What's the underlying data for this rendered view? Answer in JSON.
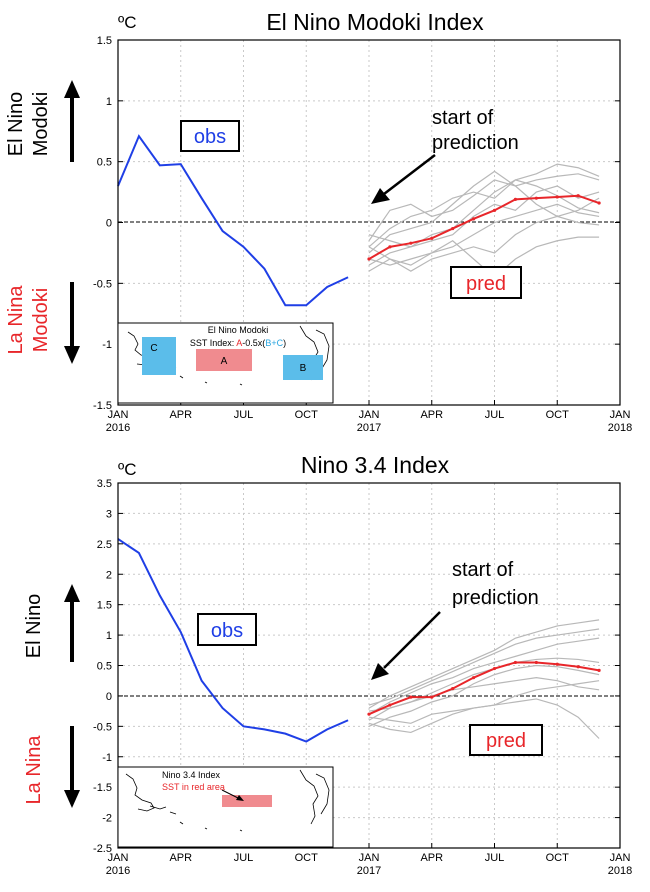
{
  "chart_data": [
    {
      "type": "line",
      "title": "El Nino Modoki Index",
      "unit": "ºC",
      "ylim": [
        -1.5,
        1.5
      ],
      "yticks": [
        -1.5,
        -1,
        -0.5,
        0,
        0.5,
        1,
        1.5
      ],
      "ytick_labels": [
        "-1.5",
        "-1",
        "-0.5",
        "0",
        "0.5",
        "1",
        "1.5"
      ],
      "xlim": [
        0,
        24
      ],
      "xticks": [
        {
          "x": 0,
          "line1": "JAN",
          "line2": "2016"
        },
        {
          "x": 3,
          "line1": "APR",
          "line2": ""
        },
        {
          "x": 6,
          "line1": "JUL",
          "line2": ""
        },
        {
          "x": 9,
          "line1": "OCT",
          "line2": ""
        },
        {
          "x": 12,
          "line1": "JAN",
          "line2": "2017"
        },
        {
          "x": 15,
          "line1": "APR",
          "line2": ""
        },
        {
          "x": 18,
          "line1": "JUL",
          "line2": ""
        },
        {
          "x": 21,
          "line1": "OCT",
          "line2": ""
        },
        {
          "x": 24,
          "line1": "JAN",
          "line2": "2018"
        }
      ],
      "obs": {
        "x": [
          0,
          1,
          2,
          3,
          4,
          5,
          6,
          7,
          8,
          9,
          10,
          11
        ],
        "values": [
          0.3,
          0.71,
          0.47,
          0.48,
          0.2,
          -0.07,
          -0.2,
          -0.38,
          -0.68,
          -0.68,
          -0.53,
          -0.45
        ],
        "color": "#1f3fe6"
      },
      "pred_mean": {
        "x": [
          12,
          13,
          14,
          15,
          16,
          17,
          18,
          19,
          20,
          21,
          22,
          23
        ],
        "values": [
          -0.3,
          -0.2,
          -0.17,
          -0.13,
          -0.05,
          0.03,
          0.1,
          0.19,
          0.2,
          0.21,
          0.22,
          0.16
        ],
        "color": "#e8262a"
      },
      "members": {
        "x": [
          12,
          13,
          14,
          15,
          16,
          17,
          18,
          19,
          20,
          21,
          22,
          23
        ],
        "color": "#b8b8b8",
        "lines": [
          [
            -0.15,
            0.1,
            0.15,
            0.05,
            0.1,
            0.22,
            0.35,
            0.3,
            0.35,
            0.38,
            0.4,
            0.35
          ],
          [
            -0.2,
            -0.05,
            0.05,
            0.1,
            0.2,
            0.25,
            0.2,
            0.35,
            0.4,
            0.48,
            0.45,
            0.38
          ],
          [
            -0.25,
            -0.1,
            -0.05,
            0.0,
            0.15,
            0.3,
            0.42,
            0.3,
            0.15,
            0.05,
            0.1,
            0.2
          ],
          [
            -0.35,
            -0.25,
            -0.2,
            -0.1,
            -0.05,
            0.1,
            0.25,
            0.35,
            0.3,
            0.22,
            0.12,
            0.08
          ],
          [
            -0.4,
            -0.3,
            -0.35,
            -0.25,
            -0.2,
            -0.1,
            0.0,
            0.05,
            0.1,
            0.15,
            0.08,
            0.05
          ],
          [
            -0.1,
            -0.15,
            -0.2,
            -0.15,
            -0.1,
            0.05,
            0.15,
            0.1,
            0.25,
            0.3,
            0.2,
            0.25
          ],
          [
            -0.3,
            -0.35,
            -0.3,
            -0.25,
            -0.15,
            -0.3,
            -0.45,
            -0.3,
            -0.2,
            -0.15,
            -0.12,
            -0.12
          ],
          [
            -0.2,
            -0.3,
            -0.4,
            -0.3,
            -0.25,
            -0.2,
            -0.25,
            -0.1,
            0.0,
            0.05,
            0.0,
            -0.02
          ]
        ]
      },
      "labels": {
        "obs": "obs",
        "pred": "pred",
        "start_line1": "start of",
        "start_line2": "prediction",
        "upper_line1": "El Nino",
        "upper_line2": "Modoki",
        "lower_line1": "La Nina",
        "lower_line2": "Modoki"
      },
      "inset": {
        "title": "El Nino Modoki",
        "formula_prefix": "SST Index: ",
        "formula_a": "A",
        "formula_mid": "-0.5x(",
        "formula_bc": "B+C",
        "formula_suffix": ")",
        "box_a": "A",
        "box_b": "B",
        "box_c": "C"
      }
    },
    {
      "type": "line",
      "title": "Nino 3.4 Index",
      "unit": "ºC",
      "ylim": [
        -2.5,
        3.5
      ],
      "yticks": [
        -2.5,
        -2,
        -1.5,
        -1,
        -0.5,
        0,
        0.5,
        1,
        1.5,
        2,
        2.5,
        3,
        3.5
      ],
      "ytick_labels": [
        "-2.5",
        "-2",
        "-1.5",
        "-1",
        "-0.5",
        "0",
        "0.5",
        "1",
        "1.5",
        "2",
        "2.5",
        "3",
        "3.5"
      ],
      "xlim": [
        0,
        24
      ],
      "xticks": [
        {
          "x": 0,
          "line1": "JAN",
          "line2": "2016"
        },
        {
          "x": 3,
          "line1": "APR",
          "line2": ""
        },
        {
          "x": 6,
          "line1": "JUL",
          "line2": ""
        },
        {
          "x": 9,
          "line1": "OCT",
          "line2": ""
        },
        {
          "x": 12,
          "line1": "JAN",
          "line2": "2017"
        },
        {
          "x": 15,
          "line1": "APR",
          "line2": ""
        },
        {
          "x": 18,
          "line1": "JUL",
          "line2": ""
        },
        {
          "x": 21,
          "line1": "OCT",
          "line2": ""
        },
        {
          "x": 24,
          "line1": "JAN",
          "line2": "2018"
        }
      ],
      "obs": {
        "x": [
          0,
          1,
          2,
          3,
          4,
          5,
          6,
          7,
          8,
          9,
          10,
          11
        ],
        "values": [
          2.58,
          2.35,
          1.65,
          1.05,
          0.25,
          -0.2,
          -0.5,
          -0.55,
          -0.62,
          -0.75,
          -0.55,
          -0.4
        ],
        "color": "#1f3fe6"
      },
      "pred_mean": {
        "x": [
          12,
          13,
          14,
          15,
          16,
          17,
          18,
          19,
          20,
          21,
          22,
          23
        ],
        "values": [
          -0.3,
          -0.15,
          -0.02,
          -0.02,
          0.12,
          0.3,
          0.45,
          0.55,
          0.55,
          0.52,
          0.48,
          0.42
        ],
        "color": "#e8262a"
      },
      "members": {
        "x": [
          12,
          13,
          14,
          15,
          16,
          17,
          18,
          19,
          20,
          21,
          22,
          23
        ],
        "color": "#b8b8b8",
        "lines": [
          [
            -0.2,
            0.0,
            0.15,
            0.3,
            0.45,
            0.6,
            0.75,
            0.95,
            1.05,
            1.15,
            1.2,
            1.25
          ],
          [
            -0.15,
            -0.05,
            0.1,
            0.25,
            0.4,
            0.55,
            0.7,
            0.85,
            0.95,
            1.0,
            1.05,
            1.1
          ],
          [
            -0.3,
            -0.1,
            0.05,
            0.2,
            0.3,
            0.45,
            0.55,
            0.65,
            0.75,
            0.85,
            0.9,
            0.95
          ],
          [
            -0.4,
            -0.2,
            -0.1,
            0.05,
            0.2,
            0.35,
            0.45,
            0.55,
            0.6,
            0.62,
            0.6,
            0.55
          ],
          [
            -0.5,
            -0.35,
            -0.25,
            -0.1,
            0.0,
            0.2,
            0.35,
            0.45,
            0.5,
            0.48,
            0.42,
            0.35
          ],
          [
            -0.45,
            -0.55,
            -0.6,
            -0.45,
            -0.3,
            -0.2,
            -0.15,
            0.0,
            0.1,
            0.15,
            0.2,
            0.25
          ],
          [
            -0.35,
            -0.4,
            -0.45,
            -0.3,
            -0.25,
            -0.2,
            -0.15,
            -0.1,
            -0.05,
            -0.15,
            -0.35,
            -0.7
          ],
          [
            -0.25,
            -0.2,
            -0.1,
            0.0,
            0.1,
            0.15,
            0.2,
            0.25,
            0.3,
            0.25,
            0.15,
            0.1
          ]
        ]
      },
      "labels": {
        "obs": "obs",
        "pred": "pred",
        "start_line1": "start of",
        "start_line2": "prediction",
        "upper_line1": "El Nino",
        "upper_line2": "",
        "lower_line1": "La Nina",
        "lower_line2": ""
      },
      "inset": {
        "title": "Nino 3.4 Index",
        "subtitle": "SST in red area"
      }
    }
  ]
}
